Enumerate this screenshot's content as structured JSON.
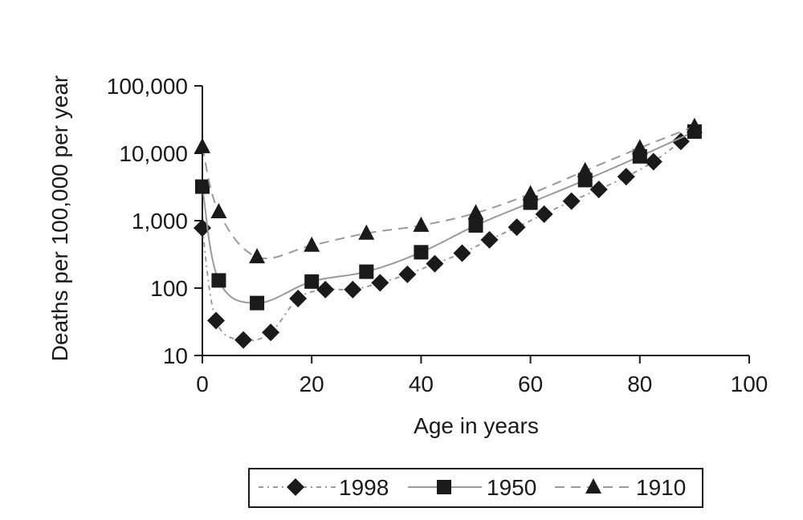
{
  "chart_data": {
    "type": "line",
    "title": "",
    "xlabel": "Age in years",
    "ylabel": "Deaths per 100,000 per year",
    "xlim": [
      0,
      100
    ],
    "ylim": [
      10,
      100000
    ],
    "yscale": "log",
    "x_ticks": [
      0,
      20,
      40,
      60,
      80,
      100
    ],
    "x_tick_labels": [
      "0",
      "20",
      "40",
      "60",
      "80",
      "100"
    ],
    "y_ticks": [
      10,
      100,
      1000,
      10000,
      100000
    ],
    "y_tick_labels": [
      "10",
      "100",
      "1,000",
      "10,000",
      "100,000"
    ],
    "grid": false,
    "legend_position": "bottom-center",
    "series": [
      {
        "name": "1998",
        "marker": "diamond",
        "line_style": "dash-dot",
        "color": "#9a9a9a",
        "x": [
          0,
          2.5,
          7.5,
          12.5,
          17.5,
          22.5,
          27.5,
          32.5,
          37.5,
          42.5,
          47.5,
          52.5,
          57.5,
          62.5,
          67.5,
          72.5,
          77.5,
          82.5,
          87.5
        ],
        "values": [
          780,
          33,
          17,
          22,
          70,
          95,
          95,
          120,
          160,
          230,
          330,
          520,
          800,
          1250,
          1950,
          2900,
          4500,
          7500,
          15000
        ]
      },
      {
        "name": "1950",
        "marker": "square",
        "line_style": "solid",
        "color": "#9a9a9a",
        "x": [
          0,
          3,
          10,
          20,
          30,
          40,
          50,
          60,
          70,
          80,
          90
        ],
        "values": [
          3200,
          130,
          60,
          125,
          175,
          340,
          850,
          1850,
          4000,
          9000,
          21000
        ]
      },
      {
        "name": "1910",
        "marker": "triangle",
        "line_style": "dashed",
        "color": "#9a9a9a",
        "x": [
          0,
          3,
          10,
          20,
          30,
          40,
          50,
          60,
          70,
          80,
          90
        ],
        "values": [
          12500,
          1350,
          290,
          430,
          650,
          850,
          1300,
          2500,
          5500,
          12000,
          25000
        ]
      }
    ]
  }
}
